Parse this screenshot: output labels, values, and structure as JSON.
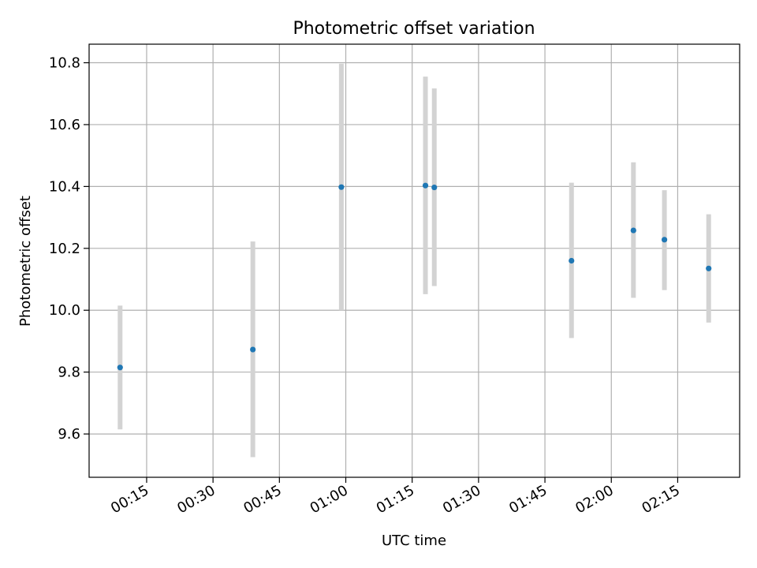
{
  "chart_data": {
    "type": "scatter",
    "title": "Photometric offset variation",
    "xlabel": "UTC time",
    "ylabel": "Photometric offset",
    "x_axis_type": "time",
    "xlim": [
      "00:02",
      "02:29"
    ],
    "ylim": [
      9.46,
      10.86
    ],
    "x_ticks": [
      "00:15",
      "00:30",
      "00:45",
      "01:00",
      "01:15",
      "01:30",
      "01:45",
      "02:00",
      "02:15"
    ],
    "y_ticks": [
      "9.6",
      "9.8",
      "10.0",
      "10.2",
      "10.4",
      "10.6",
      "10.8"
    ],
    "grid": true,
    "series": [
      {
        "colors": {
          "point": "#1f77b4",
          "error_bar": "#d3d3d3"
        },
        "points": [
          {
            "x": "00:09",
            "y": 9.815,
            "err_low": 9.615,
            "err_high": 10.015
          },
          {
            "x": "00:39",
            "y": 9.873,
            "err_low": 9.525,
            "err_high": 10.222
          },
          {
            "x": "00:59",
            "y": 10.398,
            "err_low": 10.0,
            "err_high": 10.797
          },
          {
            "x": "01:18",
            "y": 10.403,
            "err_low": 10.052,
            "err_high": 10.755
          },
          {
            "x": "01:20",
            "y": 10.397,
            "err_low": 10.078,
            "err_high": 10.717
          },
          {
            "x": "01:51",
            "y": 10.16,
            "err_low": 9.91,
            "err_high": 10.412
          },
          {
            "x": "02:05",
            "y": 10.258,
            "err_low": 10.04,
            "err_high": 10.478
          },
          {
            "x": "02:12",
            "y": 10.228,
            "err_low": 10.065,
            "err_high": 10.388
          },
          {
            "x": "02:22",
            "y": 10.135,
            "err_low": 9.96,
            "err_high": 10.31
          }
        ]
      }
    ]
  }
}
